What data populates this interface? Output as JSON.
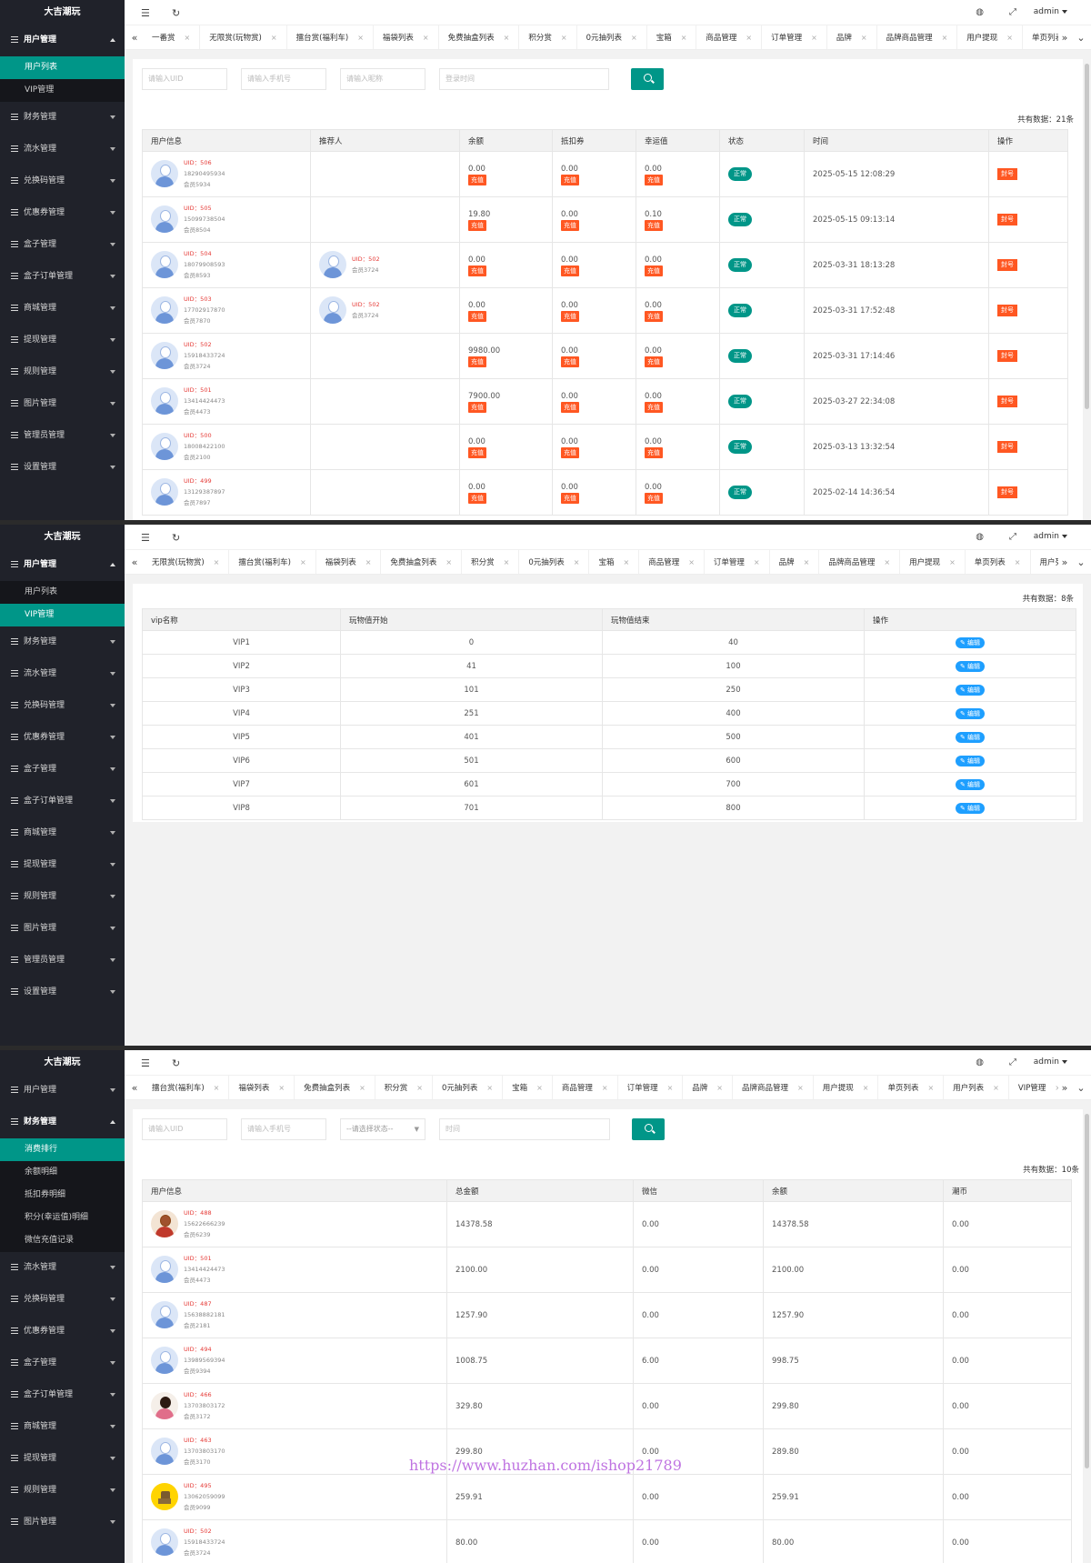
{
  "logo": "大吉潮玩",
  "admin": "admin",
  "panel1": {
    "menu_open": "用户管理",
    "sub": [
      "用户列表",
      "VIP管理"
    ],
    "sub_active": 0,
    "menus": [
      "财务管理",
      "流水管理",
      "兑换码管理",
      "优惠券管理",
      "盒子管理",
      "盒子订单管理",
      "商城管理",
      "提现管理",
      "规则管理",
      "图片管理",
      "管理员管理",
      "设置管理"
    ],
    "tabs": [
      "一番赏",
      "无限赏(玩物赏)",
      "擂台赏(福利车)",
      "福袋列表",
      "免费抽盒列表",
      "积分赏",
      "0元抽列表",
      "宝箱",
      "商品管理",
      "订单管理",
      "品牌",
      "品牌商品管理",
      "用户提现",
      "单页列表"
    ],
    "filters": {
      "uid": "请输入UID",
      "phone": "请输入手机号",
      "nick": "请输入昵称",
      "time": "登录时间"
    },
    "count_label": "共有数据：",
    "count": "21条",
    "headers": [
      "用户信息",
      "推荐人",
      "余额",
      "抵扣券",
      "幸运值",
      "状态",
      "时间",
      "操作"
    ],
    "charge_label": "充值",
    "status_label": "正常",
    "ban_label": "封号",
    "rows": [
      {
        "uid": "UID：506",
        "phone": "18290495934",
        "nick": "会员5934",
        "ref": null,
        "balance": "0.00",
        "coupon": "0.00",
        "luck": "0.00",
        "time": "2025-05-15 12:08:29"
      },
      {
        "uid": "UID：505",
        "phone": "15099738504",
        "nick": "会员8504",
        "ref": null,
        "balance": "19.80",
        "coupon": "0.00",
        "luck": "0.10",
        "time": "2025-05-15 09:13:14"
      },
      {
        "uid": "UID：504",
        "phone": "18079908593",
        "nick": "会员8593",
        "ref": {
          "uid": "UID：502",
          "nick": "会员3724"
        },
        "balance": "0.00",
        "coupon": "0.00",
        "luck": "0.00",
        "time": "2025-03-31 18:13:28"
      },
      {
        "uid": "UID：503",
        "phone": "17702917870",
        "nick": "会员7870",
        "ref": {
          "uid": "UID：502",
          "nick": "会员3724"
        },
        "balance": "0.00",
        "coupon": "0.00",
        "luck": "0.00",
        "time": "2025-03-31 17:52:48"
      },
      {
        "uid": "UID：502",
        "phone": "15918433724",
        "nick": "会员3724",
        "ref": null,
        "balance": "9980.00",
        "coupon": "0.00",
        "luck": "0.00",
        "time": "2025-03-31 17:14:46"
      },
      {
        "uid": "UID：501",
        "phone": "13414424473",
        "nick": "会员4473",
        "ref": null,
        "balance": "7900.00",
        "coupon": "0.00",
        "luck": "0.00",
        "time": "2025-03-27 22:34:08"
      },
      {
        "uid": "UID：500",
        "phone": "18008422100",
        "nick": "会员2100",
        "ref": null,
        "balance": "0.00",
        "coupon": "0.00",
        "luck": "0.00",
        "time": "2025-03-13 13:32:54"
      },
      {
        "uid": "UID：499",
        "phone": "13129387897",
        "nick": "会员7897",
        "ref": null,
        "balance": "0.00",
        "coupon": "0.00",
        "luck": "0.00",
        "time": "2025-02-14 14:36:54"
      }
    ]
  },
  "panel2": {
    "menu_open": "用户管理",
    "sub": [
      "用户列表",
      "VIP管理"
    ],
    "sub_active": 1,
    "menus": [
      "财务管理",
      "流水管理",
      "兑换码管理",
      "优惠券管理",
      "盒子管理",
      "盒子订单管理",
      "商城管理",
      "提现管理",
      "规则管理",
      "图片管理",
      "管理员管理",
      "设置管理"
    ],
    "tabs": [
      "无限赏(玩物赏)",
      "擂台赏(福利车)",
      "福袋列表",
      "免费抽盒列表",
      "积分赏",
      "0元抽列表",
      "宝箱",
      "商品管理",
      "订单管理",
      "品牌",
      "品牌商品管理",
      "用户提现",
      "单页列表",
      "用户列"
    ],
    "count_label": "共有数据：",
    "count": "8条",
    "headers": [
      "vip名称",
      "玩物值开始",
      "玩物值结束",
      "操作"
    ],
    "edit_label": "编辑",
    "rows": [
      {
        "name": "VIP1",
        "start": "0",
        "end": "40"
      },
      {
        "name": "VIP2",
        "start": "41",
        "end": "100"
      },
      {
        "name": "VIP3",
        "start": "101",
        "end": "250"
      },
      {
        "name": "VIP4",
        "start": "251",
        "end": "400"
      },
      {
        "name": "VIP5",
        "start": "401",
        "end": "500"
      },
      {
        "name": "VIP6",
        "start": "501",
        "end": "600"
      },
      {
        "name": "VIP7",
        "start": "601",
        "end": "700"
      },
      {
        "name": "VIP8",
        "start": "701",
        "end": "800"
      }
    ]
  },
  "panel3": {
    "menu_top": "用户管理",
    "menu_open": "财务管理",
    "sub": [
      "消费排行",
      "余额明细",
      "抵扣券明细",
      "积分(幸运值)明细",
      "微信充值记录"
    ],
    "sub_active": 0,
    "menus": [
      "流水管理",
      "兑换码管理",
      "优惠券管理",
      "盒子管理",
      "盒子订单管理",
      "商城管理",
      "提现管理",
      "规则管理",
      "图片管理"
    ],
    "tabs": [
      "擂台赏(福利车)",
      "福袋列表",
      "免费抽盒列表",
      "积分赏",
      "0元抽列表",
      "宝箱",
      "商品管理",
      "订单管理",
      "品牌",
      "品牌商品管理",
      "用户提现",
      "单页列表",
      "用户列表",
      "VIP管理"
    ],
    "filters": {
      "uid": "请输入UID",
      "phone": "请输入手机号",
      "status": "--请选择状态--",
      "time": "时间"
    },
    "count_label": "共有数据：",
    "count": "10条",
    "headers": [
      "用户信息",
      "总金额",
      "微信",
      "余额",
      "潮币"
    ],
    "rows": [
      {
        "uid": "UID：488",
        "phone": "15622666239",
        "nick": "会员6239",
        "av": "m",
        "total": "14378.58",
        "wx": "0.00",
        "bal": "14378.58",
        "coin": "0.00"
      },
      {
        "uid": "UID：501",
        "phone": "13414424473",
        "nick": "会员4473",
        "av": "",
        "total": "2100.00",
        "wx": "0.00",
        "bal": "2100.00",
        "coin": "0.00"
      },
      {
        "uid": "UID：487",
        "phone": "15638882181",
        "nick": "会员2181",
        "av": "",
        "total": "1257.90",
        "wx": "0.00",
        "bal": "1257.90",
        "coin": "0.00"
      },
      {
        "uid": "UID：494",
        "phone": "13989569394",
        "nick": "会员9394",
        "av": "",
        "total": "1008.75",
        "wx": "6.00",
        "bal": "998.75",
        "coin": "0.00"
      },
      {
        "uid": "UID：466",
        "phone": "13703803172",
        "nick": "会员3172",
        "av": "g",
        "total": "329.80",
        "wx": "0.00",
        "bal": "299.80",
        "coin": "0.00"
      },
      {
        "uid": "UID：463",
        "phone": "13703803170",
        "nick": "会员3170",
        "av": "",
        "total": "299.80",
        "wx": "0.00",
        "bal": "289.80",
        "coin": "0.00"
      },
      {
        "uid": "UID：495",
        "phone": "13062059099",
        "nick": "会员9099",
        "av": "y",
        "total": "259.91",
        "wx": "0.00",
        "bal": "259.91",
        "coin": "0.00"
      },
      {
        "uid": "UID：502",
        "phone": "15918433724",
        "nick": "会员3724",
        "av": "",
        "total": "80.00",
        "wx": "0.00",
        "bal": "80.00",
        "coin": "0.00"
      }
    ]
  },
  "watermark": "https://www.huzhan.com/ishop21789"
}
